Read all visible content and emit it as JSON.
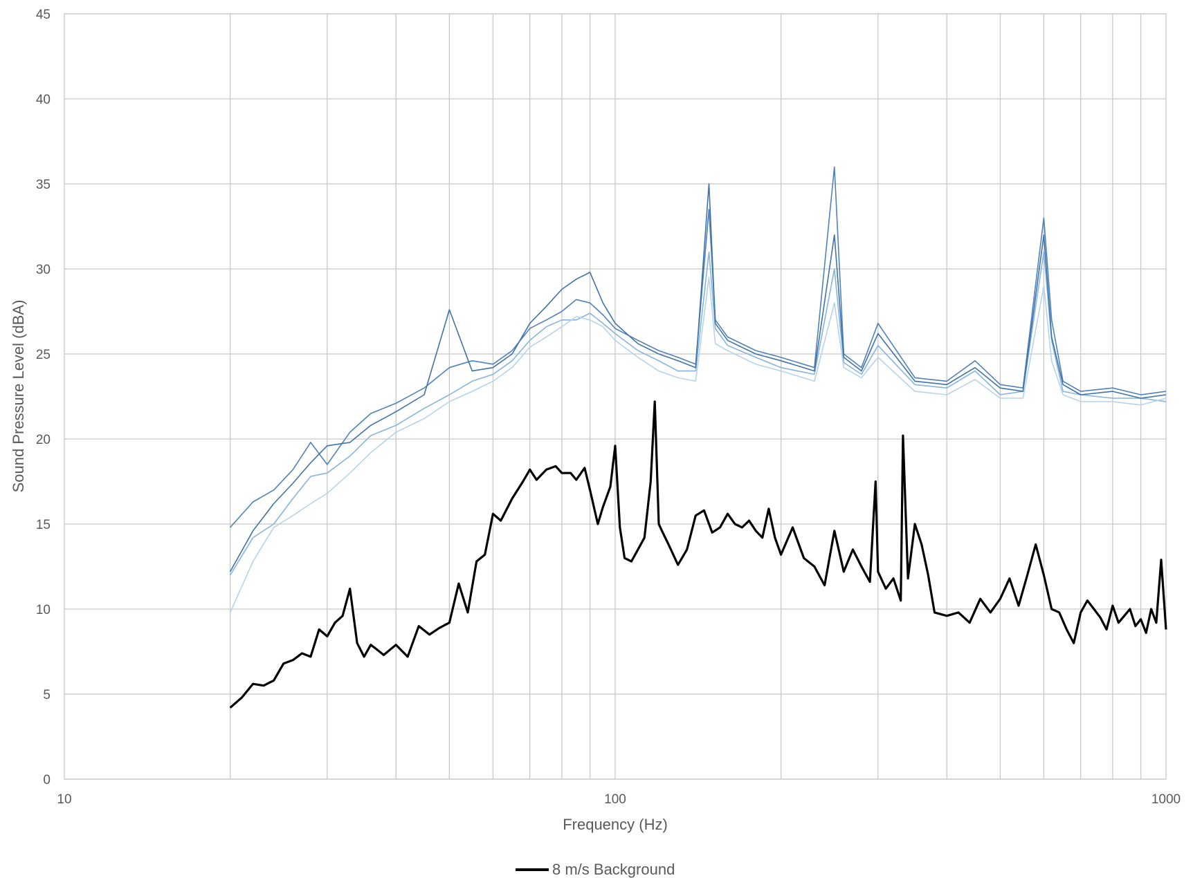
{
  "chart_data": {
    "type": "line",
    "title": "",
    "xlabel": "Frequency (Hz)",
    "ylabel": "Sound Pressure Level (dBA)",
    "x_scale": "log",
    "xlim": [
      10,
      1000
    ],
    "ylim": [
      0,
      45
    ],
    "x_ticks": [
      "10",
      "100",
      "1000"
    ],
    "y_ticks": [
      "0",
      "5",
      "10",
      "15",
      "20",
      "25",
      "30",
      "35",
      "40",
      "45"
    ],
    "grid": true,
    "legend_position": "bottom-center",
    "legend": [
      "8 m/s Background"
    ],
    "colors": {
      "background_series": "#000000",
      "turbine_series": [
        "#4f81bd",
        "#5b93c8",
        "#6fa3d3",
        "#86b4dc",
        "#9ec4e4",
        "#b6d3eb",
        "#cfe1f1",
        "#3f72a8"
      ]
    },
    "series": [
      {
        "name": "8 m/s Background",
        "color": "#000000",
        "x": [
          20,
          21,
          22,
          23,
          24,
          25,
          26,
          27,
          28,
          29,
          30,
          31,
          32,
          33,
          34,
          35,
          36,
          37,
          38,
          40,
          42,
          44,
          46,
          48,
          50,
          52,
          54,
          56,
          58,
          60,
          62,
          65,
          68,
          70,
          72,
          75,
          78,
          80,
          83,
          85,
          88,
          90,
          93,
          95,
          98,
          100,
          102,
          104,
          107,
          110,
          113,
          116,
          118,
          120,
          122,
          125,
          130,
          135,
          140,
          145,
          150,
          155,
          160,
          165,
          170,
          175,
          180,
          185,
          190,
          195,
          200,
          210,
          220,
          230,
          240,
          250,
          260,
          270,
          280,
          290,
          297,
          300,
          310,
          320,
          330,
          333,
          340,
          350,
          360,
          370,
          380,
          400,
          420,
          440,
          460,
          480,
          500,
          520,
          540,
          560,
          580,
          600,
          620,
          640,
          660,
          680,
          700,
          720,
          740,
          760,
          780,
          800,
          820,
          840,
          860,
          880,
          900,
          920,
          940,
          960,
          980,
          1000
        ],
        "y": [
          4.2,
          4.8,
          5.6,
          5.5,
          5.8,
          6.8,
          7.0,
          7.4,
          7.2,
          8.8,
          8.4,
          9.2,
          9.6,
          11.2,
          8.0,
          7.2,
          7.9,
          7.6,
          7.3,
          7.9,
          7.2,
          9.0,
          8.5,
          8.9,
          9.2,
          11.5,
          9.8,
          12.8,
          13.2,
          15.6,
          15.2,
          16.5,
          17.5,
          18.2,
          17.6,
          18.2,
          18.4,
          18.0,
          18.0,
          17.6,
          18.3,
          17.0,
          15.0,
          16.0,
          17.2,
          19.6,
          14.8,
          13.0,
          12.8,
          13.5,
          14.2,
          17.5,
          22.2,
          15.0,
          14.5,
          13.8,
          12.6,
          13.5,
          15.5,
          15.8,
          14.5,
          14.8,
          15.6,
          15.0,
          14.8,
          15.2,
          14.6,
          14.2,
          15.9,
          14.2,
          13.2,
          14.8,
          13.0,
          12.5,
          11.4,
          14.6,
          12.2,
          13.5,
          12.5,
          11.6,
          17.5,
          12.2,
          11.2,
          11.8,
          10.5,
          20.2,
          11.8,
          15.0,
          13.8,
          12.0,
          9.8,
          9.6,
          9.8,
          9.2,
          10.6,
          9.8,
          10.6,
          11.8,
          10.2,
          12.0,
          13.8,
          12.0,
          10.0,
          9.8,
          8.8,
          8.0,
          9.8,
          10.5,
          10.0,
          9.5,
          8.8,
          10.2,
          9.2,
          9.6,
          10.0,
          9.0,
          9.4,
          8.6,
          10.0,
          9.2,
          12.9,
          8.8
        ]
      },
      {
        "name": "",
        "color": "#4f81bd",
        "x": [
          20,
          22,
          24,
          26,
          28,
          30,
          33,
          36,
          40,
          45,
          50,
          55,
          60,
          65,
          70,
          75,
          80,
          85,
          90,
          95,
          100,
          110,
          120,
          130,
          140,
          148,
          152,
          160,
          180,
          200,
          230,
          250,
          260,
          280,
          300,
          350,
          400,
          450,
          500,
          550,
          600,
          620,
          650,
          700,
          800,
          900,
          1000
        ],
        "y": [
          14.8,
          16.3,
          17.0,
          18.2,
          19.8,
          18.5,
          20.4,
          21.5,
          22.1,
          23.0,
          24.2,
          24.6,
          24.4,
          25.2,
          26.5,
          27.0,
          27.5,
          28.2,
          28.0,
          27.3,
          26.5,
          25.8,
          25.2,
          24.8,
          24.4,
          33.5,
          27.0,
          26.0,
          25.2,
          24.8,
          24.2,
          36.0,
          25.0,
          24.2,
          26.8,
          23.6,
          23.4,
          24.6,
          23.2,
          23.0,
          33.0,
          27.0,
          23.4,
          22.8,
          23.0,
          22.6,
          22.8
        ]
      },
      {
        "name": "",
        "color": "#86b4dc",
        "x": [
          20,
          22,
          24,
          26,
          28,
          30,
          33,
          36,
          40,
          45,
          50,
          55,
          60,
          65,
          70,
          75,
          80,
          85,
          90,
          95,
          100,
          110,
          120,
          130,
          140,
          148,
          152,
          160,
          180,
          200,
          230,
          250,
          260,
          280,
          300,
          350,
          400,
          450,
          500,
          550,
          600,
          620,
          650,
          700,
          800,
          900,
          1000
        ],
        "y": [
          12.0,
          14.2,
          15.0,
          16.5,
          17.8,
          18.0,
          19.0,
          20.2,
          20.8,
          21.8,
          22.6,
          23.4,
          23.8,
          24.6,
          25.8,
          26.6,
          27.0,
          27.0,
          27.4,
          26.8,
          26.2,
          25.2,
          24.6,
          24.0,
          24.0,
          31.0,
          26.5,
          25.5,
          24.8,
          24.2,
          23.8,
          30.0,
          24.5,
          23.8,
          25.5,
          23.2,
          23.0,
          24.0,
          22.6,
          22.8,
          31.0,
          25.8,
          22.8,
          22.6,
          22.4,
          22.4,
          22.2
        ]
      },
      {
        "name": "",
        "color": "#b6d3eb",
        "x": [
          20,
          22,
          24,
          26,
          28,
          30,
          33,
          36,
          40,
          45,
          50,
          55,
          60,
          65,
          70,
          75,
          80,
          85,
          90,
          95,
          100,
          110,
          120,
          130,
          140,
          148,
          152,
          160,
          180,
          200,
          230,
          250,
          260,
          280,
          300,
          350,
          400,
          450,
          500,
          550,
          600,
          620,
          650,
          700,
          800,
          900,
          1000
        ],
        "y": [
          9.8,
          12.8,
          14.8,
          15.5,
          16.2,
          16.8,
          18.0,
          19.2,
          20.4,
          21.2,
          22.2,
          22.8,
          23.4,
          24.2,
          25.4,
          26.0,
          26.6,
          27.2,
          27.0,
          26.6,
          25.8,
          24.8,
          24.0,
          23.6,
          23.4,
          29.5,
          25.6,
          25.2,
          24.4,
          24.0,
          23.4,
          28.0,
          24.2,
          23.6,
          24.8,
          22.8,
          22.6,
          23.5,
          22.4,
          22.4,
          29.0,
          24.6,
          22.6,
          22.2,
          22.2,
          22.0,
          22.4
        ]
      },
      {
        "name": "",
        "color": "#3f72a8",
        "x": [
          20,
          22,
          24,
          26,
          28,
          30,
          33,
          36,
          40,
          45,
          50,
          55,
          60,
          65,
          70,
          75,
          80,
          85,
          90,
          95,
          100,
          110,
          120,
          130,
          140,
          148,
          152,
          160,
          180,
          200,
          230,
          250,
          260,
          280,
          300,
          350,
          400,
          450,
          500,
          550,
          600,
          620,
          650,
          700,
          800,
          900,
          1000
        ],
        "y": [
          12.2,
          14.6,
          16.2,
          17.4,
          18.6,
          19.6,
          19.8,
          20.8,
          21.6,
          22.6,
          27.6,
          24.0,
          24.2,
          25.0,
          26.8,
          27.8,
          28.8,
          29.4,
          29.8,
          28.0,
          26.8,
          25.6,
          25.0,
          24.6,
          24.2,
          35.0,
          26.8,
          25.8,
          25.0,
          24.6,
          24.0,
          32.0,
          24.8,
          24.0,
          26.2,
          23.4,
          23.2,
          24.2,
          23.0,
          22.8,
          32.0,
          26.0,
          23.2,
          22.6,
          22.8,
          22.4,
          22.6
        ]
      }
    ]
  }
}
